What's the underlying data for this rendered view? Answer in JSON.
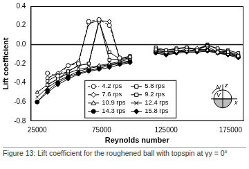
{
  "chart_data": {
    "type": "line",
    "title": "Figure 13:  Lift coefficient for the roughened ball with topspin at γy = 0°",
    "x_label": "Reynolds number",
    "y_label": "Lift coefficient",
    "annotations": [
      "z",
      "N",
      "V",
      "x"
    ],
    "xlim": [
      20000,
      185000
    ],
    "xticks": [
      25000,
      75000,
      125000,
      175000
    ],
    "ylim": [
      -0.8,
      0.4
    ],
    "yticks": [
      -0.8,
      -0.6,
      -0.4,
      -0.2,
      {
        "value": 0,
        "label": "0.0"
      },
      0.2,
      0.4
    ],
    "grid": false,
    "legend": "bottom",
    "series": [
      {
        "name": "4.2 rps",
        "color": "#000000",
        "marker": "circle",
        "line_style": "dashed",
        "x": [
          33000,
          41000,
          49000,
          57000,
          65000,
          73000,
          81000,
          89000
        ],
        "values": [
          -0.3,
          -0.33,
          -0.22,
          -0.2,
          0.24,
          0.26,
          0.2,
          -0.14
        ]
      },
      {
        "name": "5.8 rps",
        "color": "#000000",
        "marker": "square",
        "line_style": "solid",
        "x": [
          33000,
          41000,
          49000,
          57000,
          65000,
          73000,
          81000,
          89000,
          97000,
          107000,
          117000,
          125000,
          133000,
          141000,
          149000,
          157000,
          165000,
          173000,
          181000
        ],
        "values": [
          -0.38,
          -0.32,
          -0.28,
          -0.22,
          -0.2,
          0.24,
          -0.08,
          -0.15,
          -0.13,
          null,
          -0.05,
          -0.06,
          -0.05,
          -0.03,
          -0.06,
          -0.01,
          -0.04,
          -0.08,
          -0.12
        ]
      },
      {
        "name": "7.6 rps",
        "color": "#000000",
        "marker": "diamond",
        "line_style": "solid",
        "x": [
          33000,
          41000,
          49000,
          57000,
          65000,
          73000,
          81000,
          89000,
          97000,
          107000,
          117000,
          125000,
          133000,
          141000,
          149000,
          157000,
          165000,
          173000,
          181000
        ],
        "values": [
          -0.35,
          -0.3,
          -0.22,
          -0.18,
          0.22,
          0.25,
          0.24,
          -0.16,
          -0.14,
          null,
          -0.06,
          -0.08,
          -0.07,
          -0.05,
          -0.04,
          -0.02,
          -0.08,
          -0.07,
          -0.11
        ]
      },
      {
        "name": "9.2 rps",
        "color": "#000000",
        "marker": "square",
        "line_style": "solid",
        "x": [
          33000,
          41000,
          49000,
          57000,
          65000,
          73000,
          81000,
          89000,
          97000,
          107000,
          117000,
          125000,
          133000,
          141000,
          149000,
          157000,
          165000,
          173000,
          181000
        ],
        "values": [
          -0.42,
          -0.36,
          -0.28,
          -0.22,
          -0.2,
          0.25,
          -0.16,
          -0.15,
          -0.12,
          null,
          -0.03,
          -0.06,
          -0.04,
          -0.03,
          -0.05,
          0.0,
          -0.05,
          -0.06,
          -0.09
        ]
      },
      {
        "name": "10.9 rps",
        "color": "#000000",
        "marker": "triangle",
        "line_style": "solid",
        "x": [
          25000,
          33000,
          41000,
          49000,
          57000,
          65000,
          73000,
          81000,
          89000,
          97000,
          107000,
          117000,
          125000,
          133000,
          141000,
          149000,
          157000,
          165000,
          173000,
          181000
        ],
        "values": [
          -0.5,
          -0.42,
          -0.36,
          -0.3,
          -0.26,
          -0.24,
          -0.22,
          -0.2,
          -0.18,
          -0.15,
          null,
          -0.06,
          -0.08,
          -0.06,
          -0.07,
          -0.05,
          -0.06,
          -0.09,
          -0.1,
          -0.13
        ]
      },
      {
        "name": "12.4 rps",
        "color": "#000000",
        "marker": "x",
        "line_style": "solid",
        "x": [
          25000,
          33000,
          41000,
          49000,
          57000,
          65000,
          73000,
          81000,
          89000,
          97000,
          107000,
          117000,
          125000,
          133000,
          141000,
          149000,
          157000,
          165000,
          173000,
          181000
        ],
        "values": [
          -0.55,
          -0.45,
          -0.38,
          -0.33,
          -0.28,
          -0.25,
          -0.23,
          -0.21,
          -0.19,
          -0.17,
          null,
          -0.07,
          -0.09,
          -0.08,
          -0.07,
          -0.06,
          -0.05,
          -0.07,
          -0.09,
          -0.12
        ]
      },
      {
        "name": "14.3 rps",
        "color": "#000000",
        "marker": "filled_circle",
        "line_style": "solid",
        "x": [
          25000,
          33000,
          41000,
          49000,
          57000,
          65000,
          73000,
          81000,
          89000,
          97000,
          107000,
          117000,
          125000,
          133000,
          141000,
          149000,
          157000,
          165000,
          173000,
          181000
        ],
        "values": [
          -0.6,
          -0.48,
          -0.4,
          -0.34,
          -0.3,
          -0.27,
          -0.25,
          -0.22,
          -0.2,
          -0.18,
          null,
          -0.08,
          -0.1,
          -0.08,
          -0.07,
          -0.07,
          -0.06,
          -0.08,
          -0.1,
          -0.13
        ]
      },
      {
        "name": "15.8 rps",
        "color": "#000000",
        "marker": "filled_diamond",
        "line_style": "solid",
        "x": [
          25000,
          33000,
          41000,
          49000,
          57000,
          65000,
          73000,
          81000,
          89000,
          97000,
          107000,
          117000,
          125000,
          133000,
          141000,
          149000,
          157000,
          165000,
          173000,
          181000
        ],
        "values": [
          -0.6,
          -0.5,
          -0.42,
          -0.36,
          -0.31,
          -0.28,
          -0.26,
          -0.24,
          -0.21,
          -0.19,
          null,
          -0.09,
          -0.11,
          -0.09,
          -0.08,
          -0.08,
          -0.07,
          -0.09,
          -0.11,
          -0.14
        ]
      }
    ]
  }
}
